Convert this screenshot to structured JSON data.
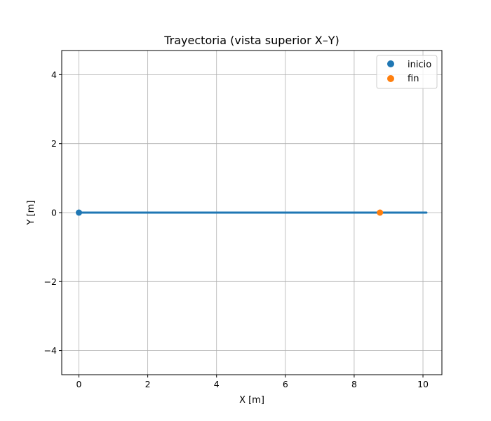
{
  "chart_data": {
    "type": "line",
    "title": "Trayectoria (vista superior X–Y)",
    "xlabel": "X [m]",
    "ylabel": "Y [m]",
    "xlim": [
      -0.5,
      10.55
    ],
    "ylim": [
      -4.7,
      4.7
    ],
    "xticks": [
      0,
      2,
      4,
      6,
      8,
      10
    ],
    "yticks": [
      -4,
      -2,
      0,
      2,
      4
    ],
    "xtick_labels": [
      "0",
      "2",
      "4",
      "6",
      "8",
      "10"
    ],
    "ytick_labels": [
      "−4",
      "−2",
      "0",
      "2",
      "4"
    ],
    "grid": true,
    "legend_position": "top-right",
    "series": [
      {
        "type": "line",
        "color": "#1f77b4",
        "x": [
          0,
          1,
          2,
          3,
          4,
          5,
          6,
          7,
          8,
          8.75,
          9.5,
          10.1,
          9.4,
          8.75
        ],
        "y": [
          0,
          0,
          0,
          0,
          0,
          0,
          0,
          0,
          0,
          0,
          0,
          0,
          0,
          0
        ]
      },
      {
        "type": "scatter",
        "name": "inicio",
        "color": "#1f77b4",
        "x": [
          0
        ],
        "y": [
          0
        ]
      },
      {
        "type": "scatter",
        "name": "fin",
        "color": "#ff7f0e",
        "x": [
          8.75
        ],
        "y": [
          0
        ]
      }
    ]
  }
}
